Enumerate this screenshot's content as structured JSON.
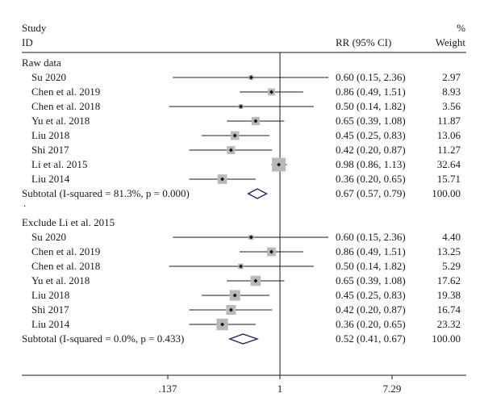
{
  "header": {
    "study_line1": "Study",
    "study_line2": "ID",
    "rr_label": "RR (95% CI)",
    "pct_line1": "%",
    "pct_line2": "Weight"
  },
  "chart_data": {
    "type": "forest",
    "x_scale": "log",
    "null_value": 1,
    "x_ticks": [
      {
        "value": 0.137,
        "label": ".137"
      },
      {
        "value": 1,
        "label": "1"
      },
      {
        "value": 7.29,
        "label": "7.29"
      }
    ],
    "groups": [
      {
        "heading": "Raw data",
        "studies": [
          {
            "id": "Su 2020",
            "rr": 0.6,
            "lo": 0.15,
            "hi": 2.36,
            "ci_text": "0.60 (0.15, 2.36)",
            "weight": "2.97"
          },
          {
            "id": "Chen et al. 2019",
            "rr": 0.86,
            "lo": 0.49,
            "hi": 1.51,
            "ci_text": "0.86 (0.49, 1.51)",
            "weight": "8.93"
          },
          {
            "id": "Chen et al. 2018",
            "rr": 0.5,
            "lo": 0.14,
            "hi": 1.82,
            "ci_text": "0.50 (0.14, 1.82)",
            "weight": "3.56"
          },
          {
            "id": "Yu et al. 2018",
            "rr": 0.65,
            "lo": 0.39,
            "hi": 1.08,
            "ci_text": "0.65 (0.39, 1.08)",
            "weight": "11.87"
          },
          {
            "id": "Liu 2018",
            "rr": 0.45,
            "lo": 0.25,
            "hi": 0.83,
            "ci_text": "0.45 (0.25, 0.83)",
            "weight": "13.06"
          },
          {
            "id": "Shi 2017",
            "rr": 0.42,
            "lo": 0.2,
            "hi": 0.87,
            "ci_text": "0.42 (0.20, 0.87)",
            "weight": "11.27"
          },
          {
            "id": "Li et al. 2015",
            "rr": 0.98,
            "lo": 0.86,
            "hi": 1.13,
            "ci_text": "0.98 (0.86, 1.13)",
            "weight": "32.64"
          },
          {
            "id": "Liu 2014",
            "rr": 0.36,
            "lo": 0.2,
            "hi": 0.65,
            "ci_text": "0.36 (0.20, 0.65)",
            "weight": "15.71"
          }
        ],
        "subtotal": {
          "label": "Subtotal (I-squared = 81.3%, p = 0.000)",
          "rr": 0.67,
          "lo": 0.57,
          "hi": 0.79,
          "ci_text": "0.67 (0.57, 0.79)",
          "weight": "100.00"
        }
      },
      {
        "heading": "Exclude Li et al. 2015",
        "studies": [
          {
            "id": "Su 2020",
            "rr": 0.6,
            "lo": 0.15,
            "hi": 2.36,
            "ci_text": "0.60 (0.15, 2.36)",
            "weight": "4.40"
          },
          {
            "id": "Chen et al. 2019",
            "rr": 0.86,
            "lo": 0.49,
            "hi": 1.51,
            "ci_text": "0.86 (0.49, 1.51)",
            "weight": "13.25"
          },
          {
            "id": "Chen et al. 2018",
            "rr": 0.5,
            "lo": 0.14,
            "hi": 1.82,
            "ci_text": "0.50 (0.14, 1.82)",
            "weight": "5.29"
          },
          {
            "id": "Yu et al. 2018",
            "rr": 0.65,
            "lo": 0.39,
            "hi": 1.08,
            "ci_text": "0.65 (0.39, 1.08)",
            "weight": "17.62"
          },
          {
            "id": "Liu 2018",
            "rr": 0.45,
            "lo": 0.25,
            "hi": 0.83,
            "ci_text": "0.45 (0.25, 0.83)",
            "weight": "19.38"
          },
          {
            "id": "Shi 2017",
            "rr": 0.42,
            "lo": 0.2,
            "hi": 0.87,
            "ci_text": "0.42 (0.20, 0.87)",
            "weight": "16.74"
          },
          {
            "id": "Liu 2014",
            "rr": 0.36,
            "lo": 0.2,
            "hi": 0.65,
            "ci_text": "0.36 (0.20, 0.65)",
            "weight": "23.32"
          }
        ],
        "subtotal": {
          "label": "Subtotal (I-squared = 0.0%, p = 0.433)",
          "rr": 0.52,
          "lo": 0.41,
          "hi": 0.67,
          "ci_text": "0.52 (0.41, 0.67)",
          "weight": "100.00"
        }
      }
    ],
    "separator_mark": ".",
    "colors": {
      "box": "#b9b9b9",
      "diamond": "#1f1f6e",
      "line": "#1a1a1a"
    }
  }
}
